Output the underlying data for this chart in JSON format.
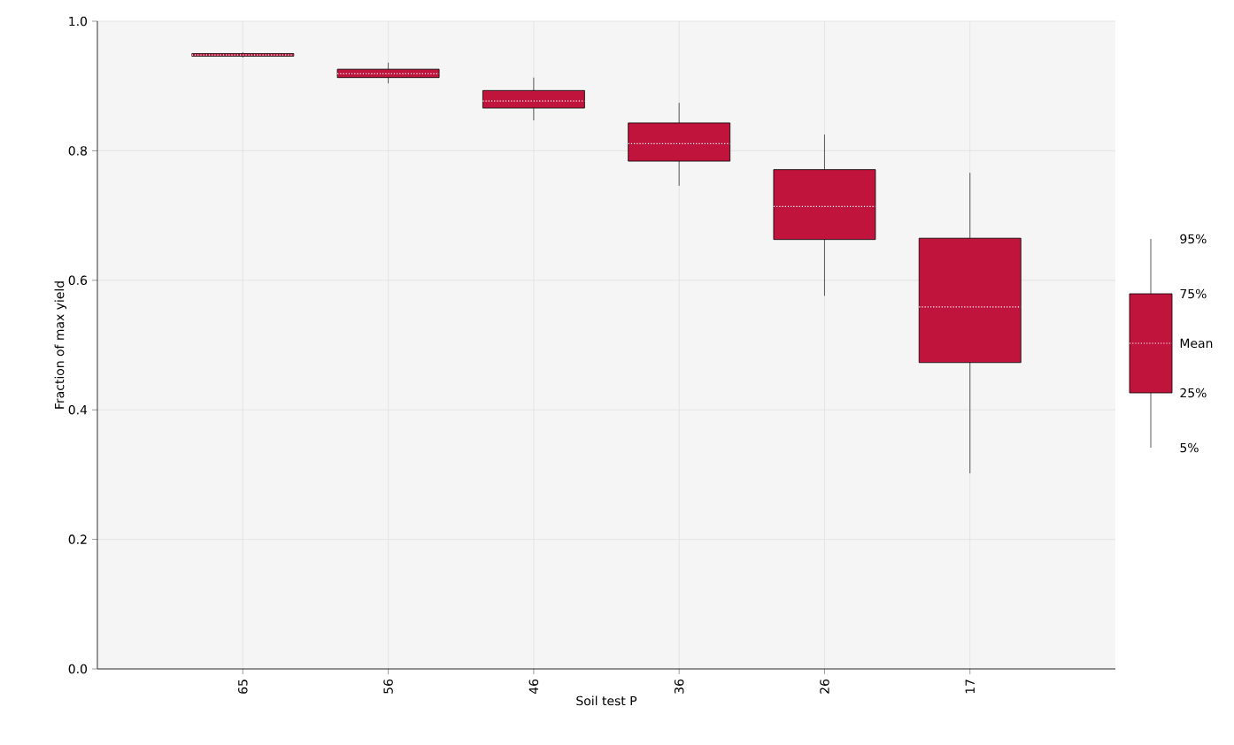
{
  "chart_data": {
    "type": "box",
    "xlabel": "Soil test P",
    "ylabel": "Fraction of max yield",
    "categories": [
      "65",
      "56",
      "46",
      "36",
      "26",
      "17"
    ],
    "boxes": [
      {
        "low": 0.944,
        "q1": 0.946,
        "median": 0.948,
        "q3": 0.95,
        "high": 0.952
      },
      {
        "low": 0.904,
        "q1": 0.913,
        "median": 0.919,
        "q3": 0.926,
        "high": 0.936
      },
      {
        "low": 0.847,
        "q1": 0.866,
        "median": 0.877,
        "q3": 0.893,
        "high": 0.913
      },
      {
        "low": 0.746,
        "q1": 0.784,
        "median": 0.811,
        "q3": 0.843,
        "high": 0.874
      },
      {
        "low": 0.576,
        "q1": 0.663,
        "median": 0.714,
        "q3": 0.771,
        "high": 0.825
      },
      {
        "low": 0.302,
        "q1": 0.473,
        "median": 0.559,
        "q3": 0.665,
        "high": 0.766
      }
    ],
    "color": "#c0143c",
    "ylim": [
      0,
      1
    ],
    "yticks": [
      {
        "value": 0,
        "label": "0.0"
      },
      0.2,
      0.4,
      0.6,
      0.8,
      {
        "value": 1,
        "label": "1.0"
      }
    ],
    "grid": true,
    "annotations": [
      "95%",
      "75%",
      "Mean",
      "25%",
      "5%"
    ]
  }
}
